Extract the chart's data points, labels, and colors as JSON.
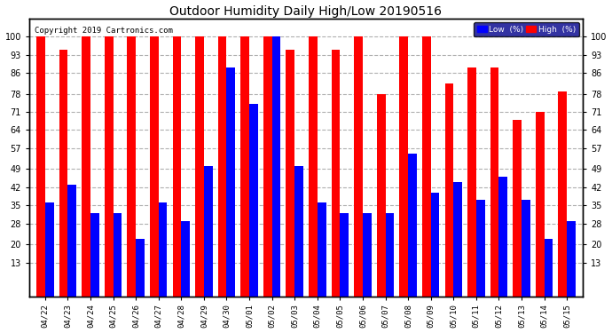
{
  "title": "Outdoor Humidity Daily High/Low 20190516",
  "copyright": "Copyright 2019 Cartronics.com",
  "dates": [
    "04/22",
    "04/23",
    "04/24",
    "04/25",
    "04/26",
    "04/27",
    "04/28",
    "04/29",
    "04/30",
    "05/01",
    "05/02",
    "05/03",
    "05/04",
    "05/05",
    "05/06",
    "05/07",
    "05/08",
    "05/09",
    "05/10",
    "05/11",
    "05/12",
    "05/13",
    "05/14",
    "05/15"
  ],
  "high": [
    100,
    95,
    100,
    100,
    100,
    100,
    100,
    100,
    100,
    100,
    100,
    95,
    100,
    95,
    100,
    78,
    100,
    100,
    82,
    88,
    88,
    68,
    71,
    79
  ],
  "low": [
    36,
    43,
    32,
    32,
    22,
    36,
    29,
    50,
    88,
    74,
    100,
    50,
    36,
    32,
    32,
    32,
    55,
    40,
    44,
    37,
    46,
    37,
    22,
    29
  ],
  "high_color": "#ff0000",
  "low_color": "#0000ff",
  "bg_color": "#ffffff",
  "grid_color": "#b0b0b0",
  "yticks": [
    13,
    20,
    28,
    35,
    42,
    49,
    57,
    64,
    71,
    78,
    86,
    93,
    100
  ],
  "ylim": [
    0,
    107
  ],
  "bar_width": 0.38,
  "legend_low_label": "Low  (%)",
  "legend_high_label": "High  (%)"
}
